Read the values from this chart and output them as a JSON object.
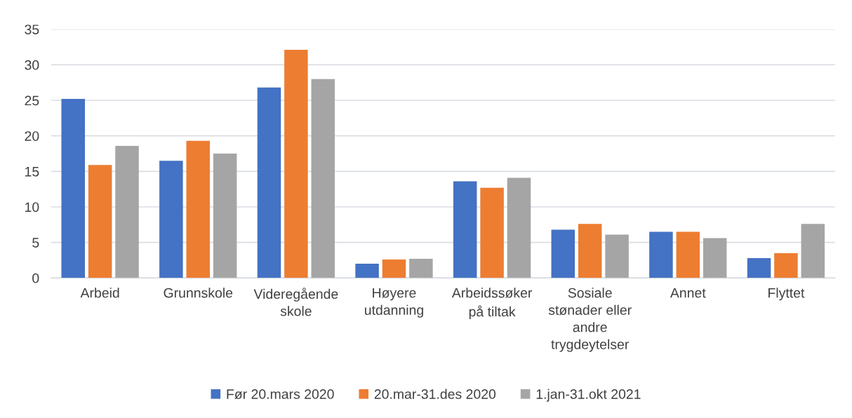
{
  "chart_data": {
    "type": "bar",
    "categories": [
      "Arbeid",
      "Grunnskole",
      "Videregående\nskole",
      "Høyere\nutdanning",
      "Arbeidssøker\npå tiltak",
      "Sosiale\nstønader eller\nandre\ntrygdeytelser",
      "Annet",
      "Flyttet"
    ],
    "series": [
      {
        "name": "Før 20.mars 2020",
        "color": "#4472c4",
        "values": [
          25.2,
          16.5,
          26.8,
          2.0,
          13.6,
          6.8,
          6.5,
          2.8
        ]
      },
      {
        "name": "20.mar-31.des 2020",
        "color": "#ed7d31",
        "values": [
          15.9,
          19.3,
          32.1,
          2.6,
          12.7,
          7.6,
          6.5,
          3.5
        ]
      },
      {
        "name": "1.jan-31.okt 2021",
        "color": "#a5a5a5",
        "values": [
          18.6,
          17.5,
          28.0,
          2.7,
          14.1,
          6.1,
          5.6,
          7.6
        ]
      }
    ],
    "ylim": [
      0,
      35
    ],
    "yticks": [
      0,
      5,
      10,
      15,
      20,
      25,
      30,
      35
    ],
    "grid": "y",
    "legend": "bottom"
  }
}
